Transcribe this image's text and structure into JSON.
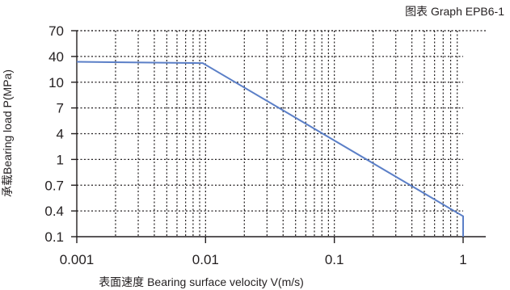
{
  "chart_data": {
    "type": "line",
    "graph_label": "图表 Graph EPB6-1",
    "xlabel": "表面速度 Bearing surface velocity V(m/s)",
    "ylabel": "承载Bearing load P(MPa)",
    "x_scale": "log",
    "xlim": [
      0.001,
      1
    ],
    "x_ticks": [
      0.001,
      0.01,
      0.1,
      1
    ],
    "x_tick_labels": [
      "0.001",
      "0.01",
      "0.1",
      "1"
    ],
    "y_ticks": [
      "0.1",
      "0.4",
      "0.7",
      "1",
      "4",
      "7",
      "10",
      "40",
      "70"
    ],
    "y_tick_labels": [
      "0.1",
      "0.4",
      "0.7",
      "1",
      "4",
      "7",
      "10",
      "40",
      "70"
    ],
    "grid": true,
    "line_color": "#5b7fc7",
    "series": [
      {
        "x": [
          0.001,
          0.0095,
          1,
          1
        ],
        "y": [
          30,
          28,
          0.3,
          0.1
        ]
      }
    ]
  }
}
